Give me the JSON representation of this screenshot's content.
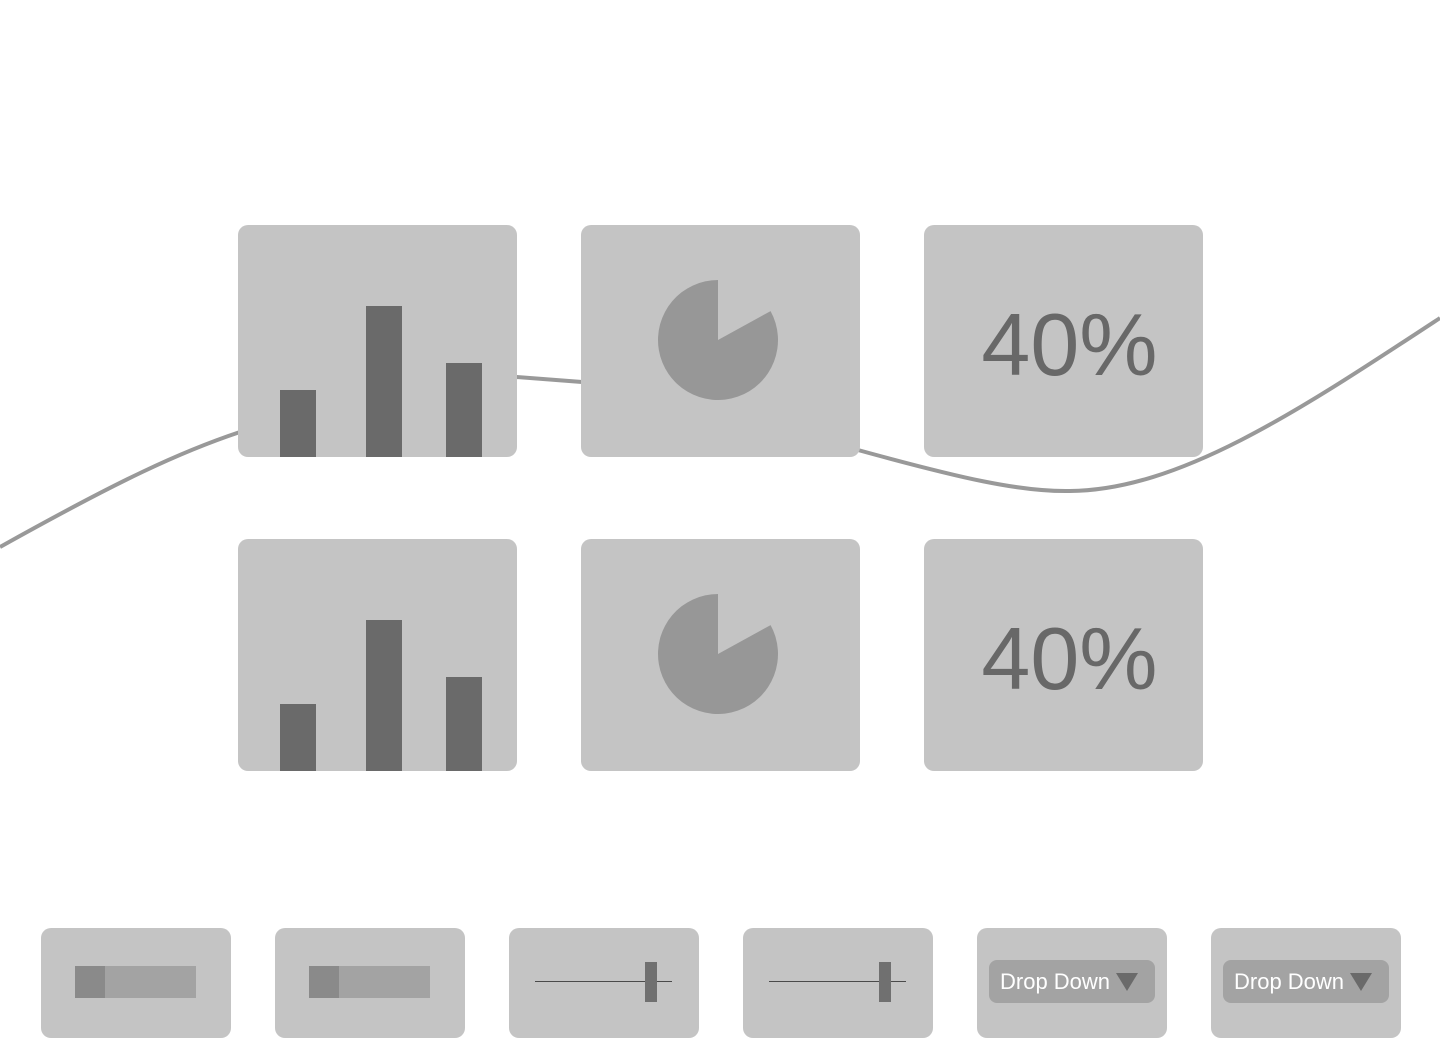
{
  "colors": {
    "background": "#ffffff",
    "card": "#c4c4c4",
    "bar": "#6a6a6a",
    "pie": "#979797",
    "curve": "#999999",
    "text": "#686868"
  },
  "widgets": {
    "row1": {
      "bar_chart": {
        "values": [
          2,
          4.5,
          2.8
        ]
      },
      "pie_chart": {
        "slice_fraction": 0.83
      },
      "kpi": {
        "value": "40%"
      }
    },
    "row2": {
      "bar_chart": {
        "values": [
          2,
          4.5,
          2.8
        ]
      },
      "pie_chart": {
        "slice_fraction": 0.83
      },
      "kpi": {
        "value": "40%"
      }
    }
  },
  "controls": {
    "progress_1": {
      "progress": 0.25
    },
    "progress_2": {
      "progress": 0.25
    },
    "slider_1": {
      "value": 0.85
    },
    "slider_2": {
      "value": 0.85
    },
    "dropdown_1": {
      "label": "Drop Down",
      "icon": "triangle-down-icon"
    },
    "dropdown_2": {
      "label": "Drop Down",
      "icon": "triangle-down-icon"
    }
  }
}
